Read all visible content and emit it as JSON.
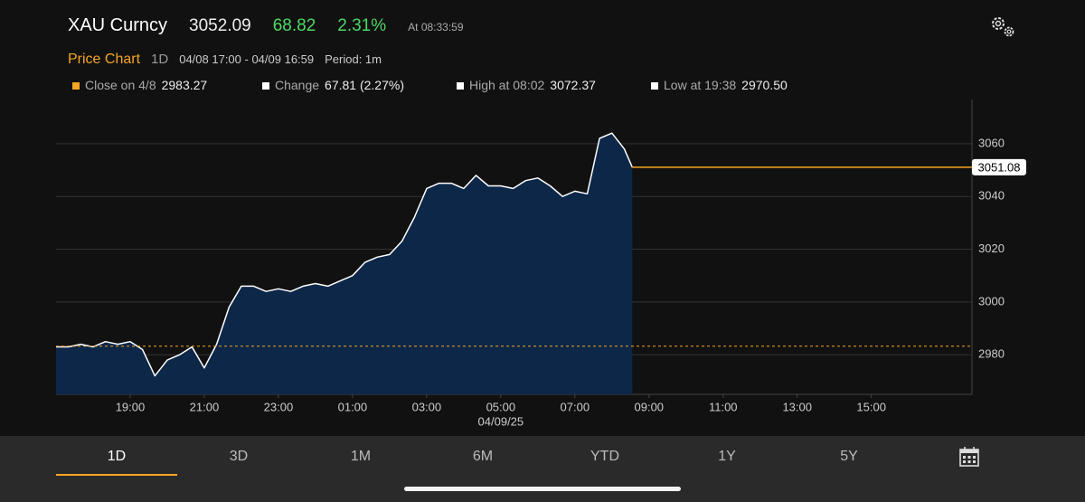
{
  "header": {
    "ticker": "XAU Curncy",
    "price": "3052.09",
    "change": "68.82",
    "change_pct": "2.31%",
    "time": "At 08:33:59"
  },
  "subheader": {
    "title": "Price Chart",
    "range": "1D",
    "span": "04/08 17:00 - 04/09 16:59",
    "period": "Period: 1m"
  },
  "stats": [
    {
      "label": "Close on 4/8",
      "value": "2983.27",
      "color": "#f5a623"
    },
    {
      "label": "Change",
      "value": "67.81 (2.27%)",
      "color": "#ffffff"
    },
    {
      "label": "High at 08:02",
      "value": "3072.37",
      "color": "#ffffff"
    },
    {
      "label": "Low at 19:38",
      "value": "2970.50",
      "color": "#ffffff"
    }
  ],
  "chart_data": {
    "type": "area",
    "x": [
      "17:00",
      "17:20",
      "17:40",
      "18:00",
      "18:20",
      "18:40",
      "19:00",
      "19:20",
      "19:40",
      "20:00",
      "20:20",
      "20:40",
      "21:00",
      "21:20",
      "21:40",
      "22:00",
      "22:20",
      "22:40",
      "23:00",
      "23:20",
      "23:40",
      "00:00",
      "00:20",
      "00:40",
      "01:00",
      "01:20",
      "01:40",
      "02:00",
      "02:20",
      "02:40",
      "03:00",
      "03:20",
      "03:40",
      "04:00",
      "04:20",
      "04:40",
      "05:00",
      "05:20",
      "05:40",
      "06:00",
      "06:20",
      "06:40",
      "07:00",
      "07:20",
      "07:40",
      "08:00",
      "08:20",
      "08:33"
    ],
    "values": [
      2983,
      2983,
      2984,
      2983,
      2985,
      2984,
      2985,
      2982,
      2972,
      2978,
      2980,
      2983,
      2975,
      2984,
      2998,
      3006,
      3006,
      3004,
      3005,
      3004,
      3006,
      3007,
      3006,
      3008,
      3010,
      3015,
      3017,
      3018,
      3023,
      3032,
      3043,
      3045,
      3045,
      3043,
      3048,
      3044,
      3044,
      3043,
      3046,
      3047,
      3044,
      3040,
      3042,
      3041,
      3062,
      3064,
      3058,
      3051.08
    ],
    "line_color": "#ffffff",
    "fill_color": "#0d2748",
    "reference_line": 2983.27,
    "reference_color": "#f5a623",
    "last_value": 3051.08,
    "last_color": "#f5a623",
    "xlim": [
      "17:00",
      "16:59"
    ],
    "xticks": [
      "19:00",
      "21:00",
      "23:00",
      "01:00",
      "03:00",
      "05:00",
      "07:00",
      "09:00",
      "11:00",
      "13:00",
      "15:00"
    ],
    "date_label": "04/09/25",
    "ylim": [
      2965,
      3074
    ],
    "yticks": [
      2980,
      3000,
      3020,
      3040,
      3060
    ],
    "grid": true
  },
  "tabs": [
    "1D",
    "3D",
    "1M",
    "6M",
    "YTD",
    "1Y",
    "5Y"
  ],
  "active_tab": 0
}
